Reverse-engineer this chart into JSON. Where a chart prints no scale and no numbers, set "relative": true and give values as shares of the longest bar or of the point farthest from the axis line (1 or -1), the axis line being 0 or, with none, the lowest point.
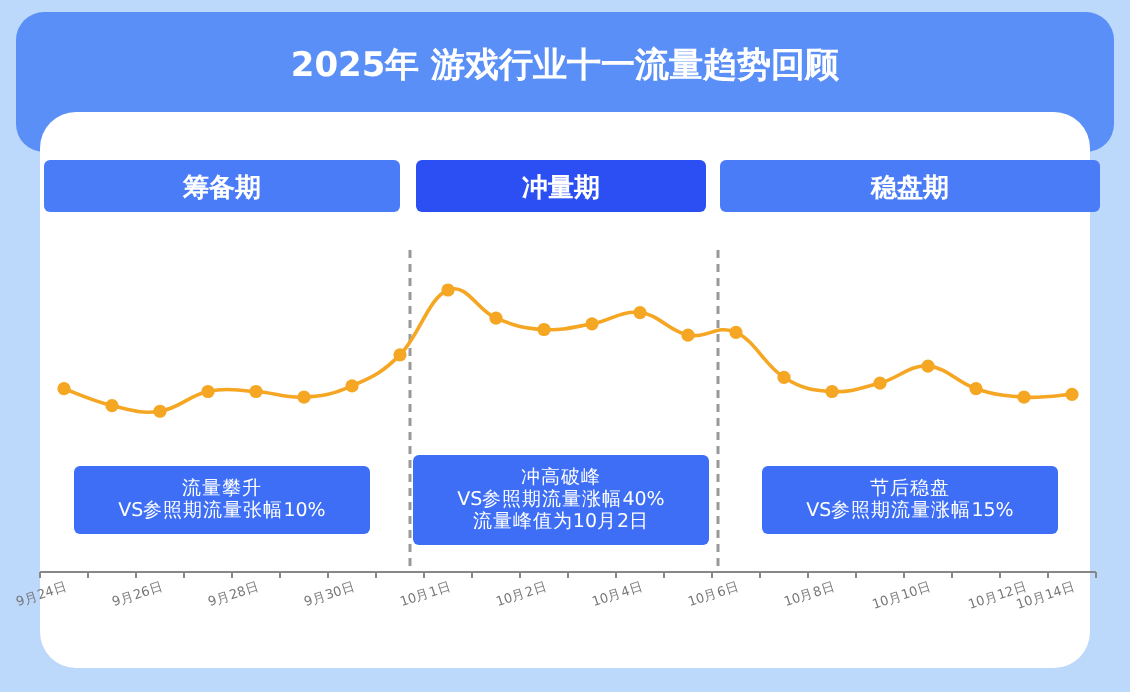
{
  "chart_data": {
    "type": "line",
    "title": "2025年 游戏行业十一流量趋势回顾",
    "relative": true,
    "marker": "circle",
    "categories": [
      "9月24日",
      null,
      "9月26日",
      null,
      "9月28日",
      null,
      "9月30日",
      null,
      "10月1日",
      null,
      "10月2日",
      null,
      "10月4日",
      null,
      "10月6日",
      null,
      "10月8日",
      null,
      "10月10日",
      null,
      "10月12日",
      "10月14日"
    ],
    "series": [
      {
        "color": "#f5a623",
        "values": [
          0.65,
          0.59,
          0.57,
          0.64,
          0.64,
          0.62,
          0.66,
          0.77,
          1,
          0.9,
          0.86,
          0.88,
          0.92,
          0.84,
          0.85,
          0.69,
          0.64,
          0.67,
          0.73,
          0.65,
          0.62,
          0.63
        ]
      }
    ],
    "annotations": [
      "筹备期",
      "冲量期",
      "稳盘期",
      "流量攀升\nVS参照期流量张幅10%",
      "冲高破峰\nVS参照期流量涨幅40%\n流量峰值为10月2日",
      "节后稳盘\nVS参照期流量涨幅15%"
    ]
  }
}
